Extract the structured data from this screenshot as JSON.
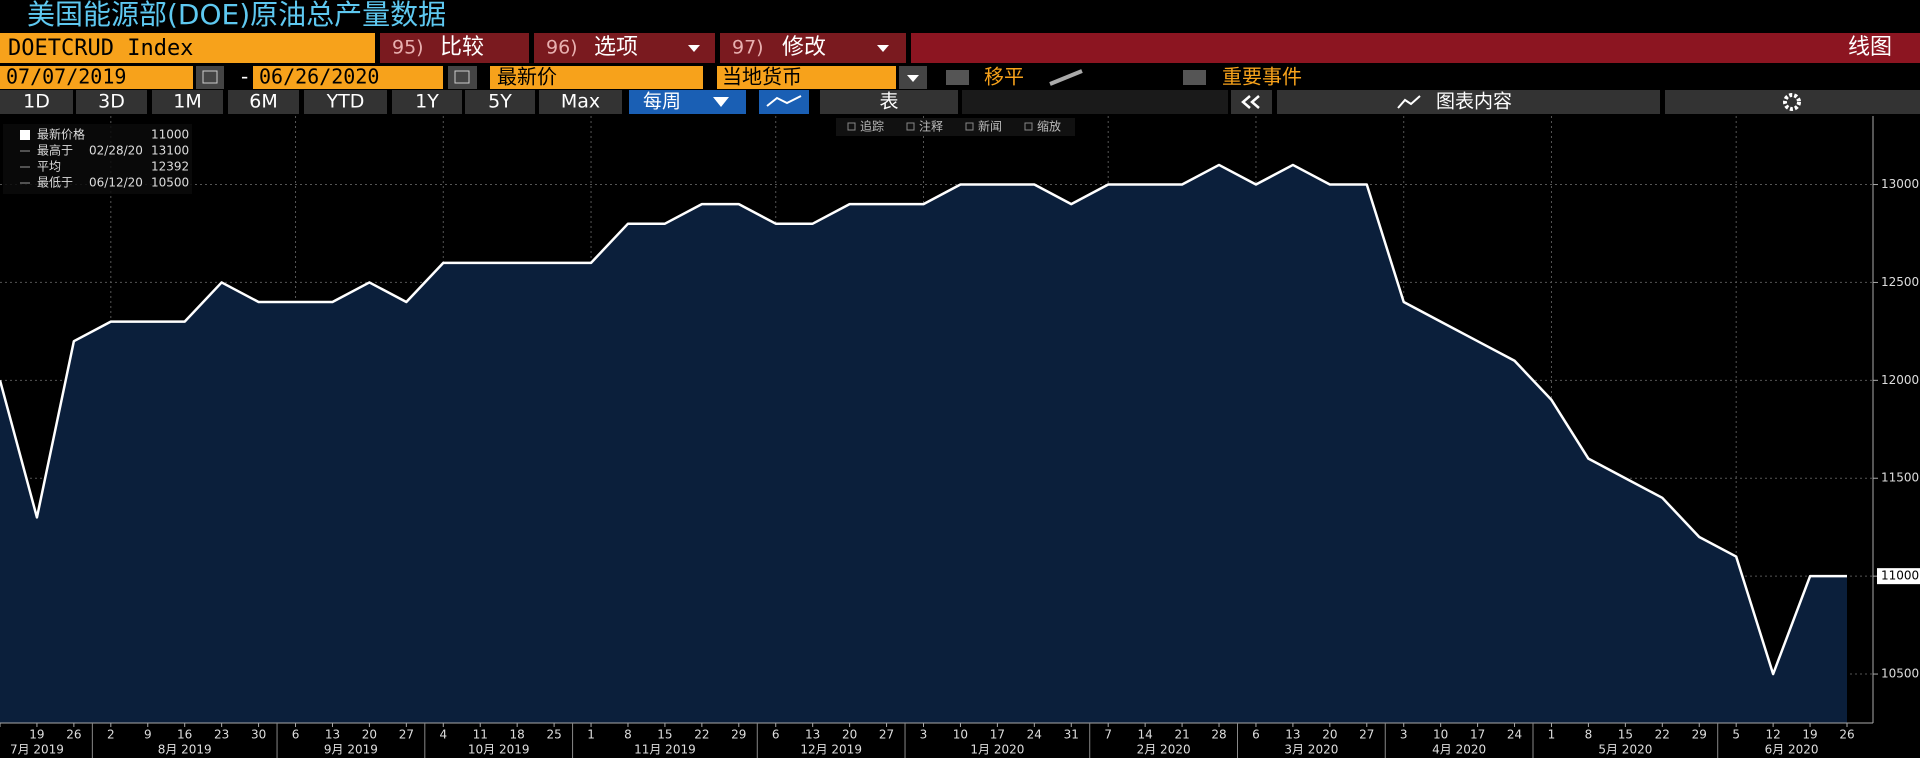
{
  "header": {
    "title": "美国能源部(DOE)原油总产量数据"
  },
  "toolbar": {
    "ticker": "DOETCRUD Index",
    "tabs": [
      {
        "num": "95)",
        "label": "比较"
      },
      {
        "num": "96)",
        "label": "选项"
      },
      {
        "num": "97)",
        "label": "修改"
      }
    ],
    "view": "线图",
    "date_start": "07/07/2019",
    "date_sep": "-",
    "date_end": "06/26/2020",
    "price_field": "最新价",
    "currency": "当地货币",
    "smooth": "移平",
    "events": "重要事件",
    "periods": [
      "1D",
      "3D",
      "1M",
      "6M",
      "YTD",
      "1Y",
      "5Y",
      "Max"
    ],
    "frequency": "每周",
    "table": "表",
    "chart_content": "图表内容",
    "tools": [
      "追踪",
      "注释",
      "新闻",
      "缩放"
    ]
  },
  "chart_data": {
    "type": "line",
    "categories": [
      null,
      "19",
      "26",
      "2",
      "9",
      "16",
      "23",
      "30",
      "6",
      "13",
      "20",
      "27",
      "4",
      "11",
      "18",
      "25",
      "1",
      "8",
      "15",
      "22",
      "29",
      "6",
      "13",
      "20",
      "27",
      "3",
      "10",
      "17",
      "24",
      "31",
      "7",
      "14",
      "21",
      "28",
      "6",
      "13",
      "20",
      "27",
      "3",
      "10",
      "17",
      "24",
      "1",
      "8",
      "15",
      "22",
      "29",
      "5",
      "12",
      "19",
      "26"
    ],
    "months": [
      "7月 2019",
      "8月 2019",
      "9月 2019",
      "10月 2019",
      "11月 2019",
      "12月 2019",
      "1月 2020",
      "2月 2020",
      "3月 2020",
      "4月 2020",
      "5月 2020",
      "6月 2020"
    ],
    "values": [
      12000,
      11300,
      12200,
      12300,
      12300,
      12300,
      12500,
      12400,
      12400,
      12400,
      12500,
      12400,
      12600,
      12600,
      12600,
      12600,
      12600,
      12800,
      12800,
      12900,
      12900,
      12800,
      12800,
      12900,
      12900,
      12900,
      13000,
      13000,
      13000,
      12900,
      13000,
      13000,
      13000,
      13100,
      13000,
      13100,
      13000,
      13000,
      12400,
      12300,
      12200,
      12100,
      11900,
      11600,
      11500,
      11400,
      11200,
      11100,
      10500,
      11000,
      11000
    ],
    "color": "#ffffff",
    "fill": "#0b1f3b",
    "ylim": [
      10250,
      13350
    ],
    "yticks": [
      10500,
      11000,
      11500,
      12000,
      12500,
      13000
    ],
    "grid": true,
    "stats": [
      {
        "label": "最新价格",
        "value": 11000
      },
      {
        "label": "最高于",
        "date": "02/28/20",
        "value": 13100
      },
      {
        "label": "平均",
        "value": 12392
      },
      {
        "label": "最低于",
        "date": "06/12/20",
        "value": 10500
      }
    ]
  }
}
